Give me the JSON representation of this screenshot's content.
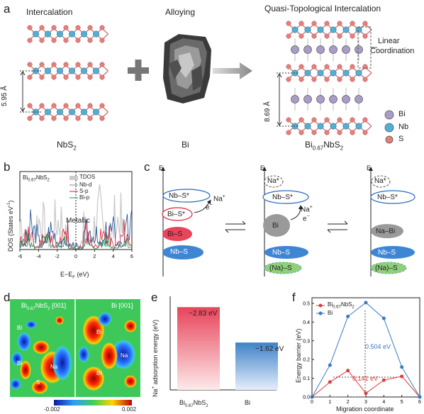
{
  "panel_a": {
    "letter": "a",
    "title_left": "Intercalation",
    "title_mid": "Alloying",
    "title_right": "Quasi-Topological Intercalation",
    "linear_coord_1": "Linear",
    "linear_coord_2": "Coordination",
    "spacing_left": "5.95 Å",
    "spacing_right": "8.69 Å",
    "label_nbs2": "NbS",
    "label_nbs2_sub": "2",
    "label_bi": "Bi",
    "label_bi067_a": "Bi",
    "label_bi067_sub": "0.67",
    "label_bi067_b": "NbS",
    "label_bi067_sub2": "2",
    "legend": [
      {
        "label": "Bi",
        "color": "#a99dc8"
      },
      {
        "label": "Nb",
        "color": "#4fb0d8"
      },
      {
        "label": "S",
        "color": "#e57f7a"
      }
    ]
  },
  "panel_b": {
    "letter": "b",
    "compound_a": "Bi",
    "compound_sub": "0.67",
    "compound_b": "NbS",
    "compound_sub2": "2",
    "legend": [
      "TDOS",
      "Nb-d",
      "S-p",
      "Bi-p"
    ],
    "metallic": "Metallic",
    "ylabel": "DOS (States eV",
    "ylabel_sup": "-1",
    "ylabel_end": ")",
    "xlabel": "E−E",
    "xlabel_sub": "F",
    "xlabel_end": " (eV)",
    "xticks": [
      "-6",
      "-4",
      "-2",
      "0",
      "2",
      "4",
      "6"
    ]
  },
  "panel_c": {
    "letter": "c",
    "axis": "E",
    "col1": [
      "Nb–S*",
      "Bi–S*",
      "Bi–S",
      "Nb–S"
    ],
    "col1_na": "Na",
    "col1_na_sup": "+",
    "col1_e": "e",
    "col1_e_sup": "−",
    "col2": [
      "Na*",
      "Nb–S*",
      "Bi",
      "Nb–S",
      "(Na)–S"
    ],
    "col2_na": "Na",
    "col2_na_sup": "+",
    "col2_e": "e",
    "col2_e_sup": "−",
    "col3": [
      "Na*",
      "Nb–S*",
      "Na–Bi",
      "Nb–S",
      "(Na)–S"
    ]
  },
  "panel_d": {
    "letter": "d",
    "left_title_a": "Bi",
    "left_title_sub": "0.67",
    "left_title_b": "NbS",
    "left_title_sub2": "2",
    "left_title_c": " [001]",
    "right_title": "Bi [001]",
    "atoms_left": [
      "Bi",
      "Bi",
      "Na",
      "S"
    ],
    "atoms_right": [
      "Bi",
      "Na",
      "Bi"
    ],
    "cbar_min": "-0.002",
    "cbar_max": "0.002"
  },
  "panel_e": {
    "letter": "e",
    "ylabel": "Na",
    "ylabel_sup": "+",
    "ylabel_end": " adsorption energy (eV)",
    "xlabel_1a": "Bi",
    "xlabel_1sub": "0.67",
    "xlabel_1b": "NbS",
    "xlabel_1sub2": "2",
    "xlabel_2": "Bi",
    "value_1": "−2.83 eV",
    "value_2": "−1.62 eV"
  },
  "panel_f": {
    "letter": "f",
    "ylabel": "Energy barrier (eV)",
    "xlabel": "Migration coordinate",
    "legend_1a": "Bi",
    "legend_1sub": "0.67",
    "legend_1b": "NbS",
    "legend_1sub2": "2",
    "legend_2": "Bi",
    "annot_big": "0.504 eV",
    "annot_small": "0.141 eV",
    "yticks": [
      "0.0",
      "0.1",
      "0.2",
      "0.3",
      "0.4",
      "0.5"
    ],
    "xticks": [
      "0",
      "1",
      "2",
      "3",
      "4",
      "5",
      "6"
    ]
  },
  "chart_data": [
    {
      "type": "bar",
      "categories": [
        "Bi0.67NbS2",
        "Bi"
      ],
      "values": [
        -2.83,
        -1.62
      ],
      "ylabel": "Na+ adsorption energy (eV)",
      "colors": [
        "#e8445a",
        "#3e82c8"
      ]
    },
    {
      "type": "line",
      "xlabel": "Migration coordinate",
      "ylabel": "Energy barrier (eV)",
      "xlim": [
        0,
        6
      ],
      "ylim": [
        0,
        0.53
      ],
      "series": [
        {
          "name": "Bi0.67NbS2",
          "color": "#e03a3a",
          "x": [
            0,
            1,
            2,
            3,
            4,
            5,
            6
          ],
          "y": [
            0.0,
            0.08,
            0.141,
            0.02,
            0.09,
            0.11,
            0.0
          ]
        },
        {
          "name": "Bi",
          "color": "#3a78c8",
          "x": [
            0,
            1,
            2,
            3,
            4,
            5,
            6
          ],
          "y": [
            0.0,
            0.17,
            0.43,
            0.504,
            0.42,
            0.16,
            0.0
          ]
        }
      ]
    }
  ]
}
